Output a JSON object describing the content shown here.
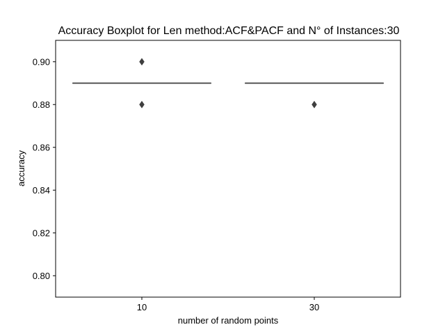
{
  "chart_data": {
    "type": "box",
    "title": "Accuracy Boxplot for Len method:ACF&PACF and N° of Instances:30",
    "xlabel": "number of random points",
    "ylabel": "accuracy",
    "categories": [
      "10",
      "30"
    ],
    "ylim": [
      0.79,
      0.91
    ],
    "yticks": [
      0.8,
      0.82,
      0.84,
      0.86,
      0.88,
      0.9
    ],
    "ytick_labels": [
      "0.80",
      "0.82",
      "0.84",
      "0.86",
      "0.88",
      "0.90"
    ],
    "grid": false,
    "legend": "none",
    "boxes": [
      {
        "category": "10",
        "q1": 0.89,
        "median": 0.89,
        "q3": 0.89,
        "whisker_low": 0.89,
        "whisker_high": 0.89,
        "outliers": [
          0.9,
          0.88
        ]
      },
      {
        "category": "30",
        "q1": 0.89,
        "median": 0.89,
        "q3": 0.89,
        "whisker_low": 0.89,
        "whisker_high": 0.89,
        "outliers": [
          0.88
        ]
      }
    ],
    "colors": {
      "box": "#3f3f3f",
      "outlier": "#3f3f3f",
      "axes": "#000000"
    }
  }
}
